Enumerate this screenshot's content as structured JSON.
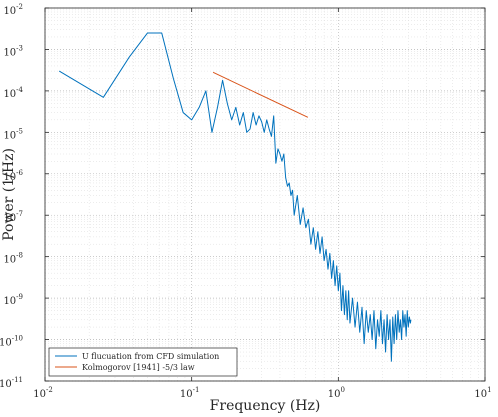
{
  "chart_data": {
    "type": "line",
    "xlabel": "Frequency (Hz)",
    "ylabel": "Power (1/Hz)",
    "x_scale": "log",
    "y_scale": "log",
    "xlim": [
      0.01,
      10
    ],
    "ylim": [
      1e-11,
      0.01
    ],
    "grid": "on",
    "legend_location": "bottom-left",
    "x_ticks": [
      {
        "value": 0.01,
        "base": "10",
        "exp": "-2"
      },
      {
        "value": 0.1,
        "base": "10",
        "exp": "-1"
      },
      {
        "value": 1,
        "base": "10",
        "exp": "0"
      },
      {
        "value": 10,
        "base": "10",
        "exp": "1"
      }
    ],
    "y_ticks": [
      {
        "value": 1e-11,
        "base": "10",
        "exp": "-11"
      },
      {
        "value": 1e-10,
        "base": "10",
        "exp": "-10"
      },
      {
        "value": 1e-09,
        "base": "10",
        "exp": "-9"
      },
      {
        "value": 1e-08,
        "base": "10",
        "exp": "-8"
      },
      {
        "value": 1e-07,
        "base": "10",
        "exp": "-7"
      },
      {
        "value": 1e-06,
        "base": "10",
        "exp": "-6"
      },
      {
        "value": 1e-05,
        "base": "10",
        "exp": "-5"
      },
      {
        "value": 0.0001,
        "base": "10",
        "exp": "-4"
      },
      {
        "value": 0.001,
        "base": "10",
        "exp": "-3"
      },
      {
        "value": 0.01,
        "base": "10",
        "exp": "-2"
      }
    ],
    "series": [
      {
        "name": "U flucuation from CFD simulation",
        "color": "#0072BD",
        "points": [
          [
            0.0125,
            0.0003
          ],
          [
            0.025,
            7e-05
          ],
          [
            0.0375,
            0.00065
          ],
          [
            0.05,
            0.0025
          ],
          [
            0.0625,
            0.0025
          ],
          [
            0.075,
            0.0002
          ],
          [
            0.0875,
            3e-05
          ],
          [
            0.1,
            2e-05
          ],
          [
            0.1125,
            4e-05
          ],
          [
            0.125,
            0.0001
          ],
          [
            0.1375,
            1e-05
          ],
          [
            0.15,
            4e-05
          ],
          [
            0.1625,
            0.00018
          ],
          [
            0.175,
            5e-05
          ],
          [
            0.1875,
            2e-05
          ],
          [
            0.2,
            4e-05
          ],
          [
            0.2125,
            1.5e-05
          ],
          [
            0.225,
            3e-05
          ],
          [
            0.2375,
            1e-05
          ],
          [
            0.25,
            1.2e-05
          ],
          [
            0.2625,
            3e-05
          ],
          [
            0.275,
            1.5e-05
          ],
          [
            0.2875,
            2.5e-05
          ],
          [
            0.3,
            1.8e-05
          ],
          [
            0.3125,
            1e-05
          ],
          [
            0.325,
            2e-05
          ],
          [
            0.3375,
            1.2e-05
          ],
          [
            0.35,
            8e-06
          ],
          [
            0.3625,
            2.5e-05
          ],
          [
            0.375,
            1.8e-06
          ],
          [
            0.3875,
            4e-06
          ],
          [
            0.4,
            3e-06
          ],
          [
            0.4125,
            2e-06
          ],
          [
            0.425,
            3e-06
          ],
          [
            0.4375,
            8e-07
          ],
          [
            0.45,
            5e-07
          ],
          [
            0.4625,
            6e-07
          ],
          [
            0.475,
            3e-07
          ],
          [
            0.4875,
            4e-07
          ],
          [
            0.5,
            1e-07
          ],
          [
            0.525,
            3e-07
          ],
          [
            0.55,
            6e-08
          ],
          [
            0.575,
            1.5e-07
          ],
          [
            0.6,
            5e-08
          ],
          [
            0.625,
            8e-08
          ],
          [
            0.65,
            2e-08
          ],
          [
            0.675,
            5e-08
          ],
          [
            0.7,
            1.5e-08
          ],
          [
            0.725,
            4e-08
          ],
          [
            0.75,
            1.2e-08
          ],
          [
            0.775,
            3e-08
          ],
          [
            0.8,
            8e-09
          ],
          [
            0.825,
            1.5e-08
          ],
          [
            0.85,
            5e-09
          ],
          [
            0.875,
            1.2e-08
          ],
          [
            0.9,
            3e-09
          ],
          [
            0.925,
            8e-09
          ],
          [
            0.95,
            2e-09
          ],
          [
            0.975,
            6e-09
          ],
          [
            1.0,
            1.5e-09
          ],
          [
            1.025,
            4e-09
          ],
          [
            1.05,
            5e-10
          ],
          [
            1.075,
            2e-09
          ],
          [
            1.1,
            4e-10
          ],
          [
            1.125,
            1.5e-09
          ],
          [
            1.15,
            3e-10
          ],
          [
            1.175,
            1.5e-09
          ],
          [
            1.2,
            2.5e-10
          ],
          [
            1.25,
            1e-09
          ],
          [
            1.3,
            2e-10
          ],
          [
            1.35,
            8e-10
          ],
          [
            1.4,
            1.5e-10
          ],
          [
            1.45,
            6e-10
          ],
          [
            1.5,
            8e-11
          ],
          [
            1.55,
            5e-10
          ],
          [
            1.6,
            1.5e-10
          ],
          [
            1.65,
            4e-10
          ],
          [
            1.7,
            1e-10
          ],
          [
            1.75,
            5e-10
          ],
          [
            1.8,
            6e-11
          ],
          [
            1.85,
            3e-10
          ],
          [
            1.9,
            1.2e-10
          ],
          [
            1.95,
            5e-10
          ],
          [
            2.0,
            8e-11
          ],
          [
            2.05,
            3e-10
          ],
          [
            2.1,
            5e-11
          ],
          [
            2.15,
            4e-10
          ],
          [
            2.2,
            1e-10
          ],
          [
            2.25,
            3e-10
          ],
          [
            2.3,
            3e-11
          ],
          [
            2.35,
            3.5e-10
          ],
          [
            2.4,
            8e-11
          ],
          [
            2.45,
            4e-10
          ],
          [
            2.5,
            1e-10
          ],
          [
            2.55,
            5e-10
          ],
          [
            2.6,
            1.5e-10
          ],
          [
            2.65,
            3e-10
          ],
          [
            2.7,
            1e-10
          ],
          [
            2.75,
            5e-10
          ],
          [
            2.8,
            2e-10
          ],
          [
            2.85,
            4e-10
          ],
          [
            2.9,
            1.2e-10
          ],
          [
            2.95,
            5e-10
          ],
          [
            3.0,
            2e-10
          ],
          [
            3.05,
            3.5e-10
          ],
          [
            3.1,
            2.5e-10
          ],
          [
            3.125,
            3e-10
          ]
        ]
      },
      {
        "name": "Kolmogorov [1941] -5/3 law",
        "color": "#D95319",
        "points": [
          [
            0.14,
            0.00028
          ],
          [
            0.62,
            2.3e-05
          ]
        ]
      }
    ]
  }
}
